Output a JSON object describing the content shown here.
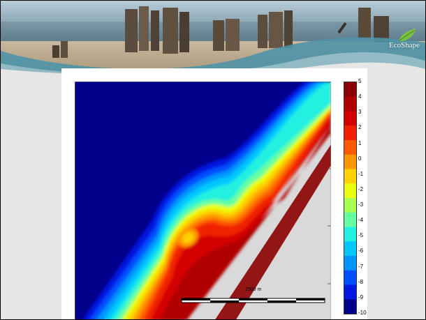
{
  "header": {
    "logo_text": "EcoShape"
  },
  "figure": {
    "scale_bar_label": "2500 m",
    "colorbar_ticks": [
      "5",
      "4",
      "3",
      "2",
      "1",
      "0",
      "-1",
      "-2",
      "-3",
      "-4",
      "-5",
      "-6",
      "-7",
      "-8",
      "-9",
      "-10"
    ],
    "colorbar_colors": [
      "#8b0000",
      "#b00000",
      "#d40000",
      "#f02000",
      "#ff5a00",
      "#ff9600",
      "#ffd200",
      "#e8ff10",
      "#a8ff50",
      "#66ffa0",
      "#22f0e0",
      "#00c8ff",
      "#0096ff",
      "#0050ff",
      "#0018e0",
      "#00008b"
    ]
  }
}
